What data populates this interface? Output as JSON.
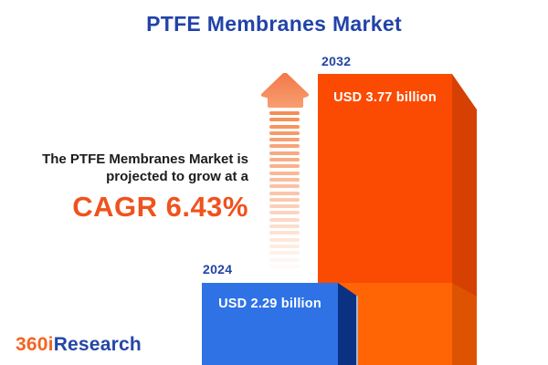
{
  "title": {
    "text": "PTFE Membranes Market",
    "color": "#2243A8"
  },
  "statement": {
    "line1": "The PTFE Membranes Market is",
    "line2": "projected to grow at a",
    "cagr": "CAGR 6.43%",
    "cagr_color": "#F0521D",
    "text_color": "#1C1C1C"
  },
  "chart_data": {
    "type": "bar",
    "title": "PTFE Membranes Market",
    "categories": [
      "2024",
      "2032"
    ],
    "values": [
      2.29,
      3.77
    ],
    "unit": "USD billion",
    "cagr_pct": 6.43,
    "legend": "none",
    "grid": false,
    "bars": [
      {
        "year": "2024",
        "label": "USD 2.29 billion",
        "front_color": "#2E72E6",
        "side_color": "#0A3182"
      },
      {
        "year": "2032",
        "label": "USD 3.77 billion",
        "front_color_top": "#FB4A02",
        "front_color_bottom": "#FF6505",
        "side_color_top": "#D64103",
        "side_color_bottom": "#DE5302"
      }
    ],
    "year_label_color": "#2243A8",
    "value_label_color": "#FFFFFF",
    "style": "3d-extruded bars, stylized heights, values labeled inside bars"
  },
  "arrow": {
    "dash_count": 24,
    "dash_color_rgb": "246,140,85",
    "head_color_top": "#F2794A",
    "head_color_bottom": "#F79C6E"
  },
  "logo": {
    "part1": "360i",
    "part2": "Research",
    "part1_color": "#F26522",
    "part2_color": "#2446A8"
  }
}
